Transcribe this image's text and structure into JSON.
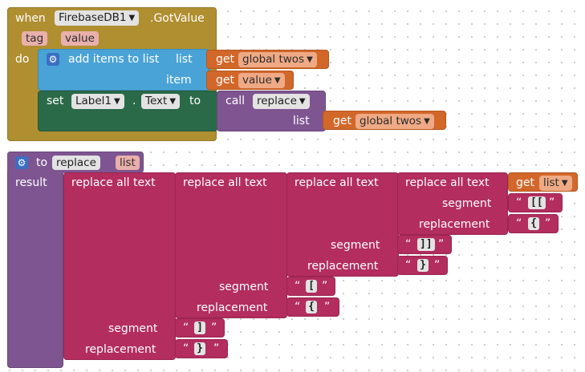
{
  "event": {
    "when_label": "when",
    "component": "FirebaseDB1",
    "event_name": ".GotValue",
    "params": [
      "tag",
      "value"
    ],
    "do_label": "do",
    "dropdown_icon": "chevron-down-icon"
  },
  "add_items": {
    "label": "add items to list",
    "list_label": "list",
    "item_label": "item",
    "list_get": {
      "get": "get",
      "var": "global twos"
    },
    "item_get": {
      "get": "get",
      "var": "value"
    }
  },
  "set_label": {
    "set": "set",
    "component": "Label1",
    "dot": ".",
    "property": "Text",
    "to": "to",
    "call": "call",
    "proc": "replace",
    "list_label": "list",
    "list_get": {
      "get": "get",
      "var": "global twos"
    }
  },
  "proc": {
    "to": "to",
    "name": "replace",
    "param": "list",
    "result": "result"
  },
  "replace_all": {
    "label": "replace all text",
    "segment": "segment",
    "replacement": "replacement",
    "get": "get",
    "var": "list",
    "quote_open": "“",
    "quote_close": "”",
    "pairs": [
      {
        "segment": "[[",
        "replacement": "{"
      },
      {
        "segment": "]]",
        "replacement": "}"
      },
      {
        "segment": "[",
        "replacement": "{"
      },
      {
        "segment": "]",
        "replacement": "}"
      }
    ]
  },
  "colors": {
    "event": "#b08f31",
    "procedure": "#7e5591",
    "text": "#b32d5e",
    "variable": "#d2672a",
    "list": "#4aa3d6",
    "component": "#2a6a48"
  }
}
